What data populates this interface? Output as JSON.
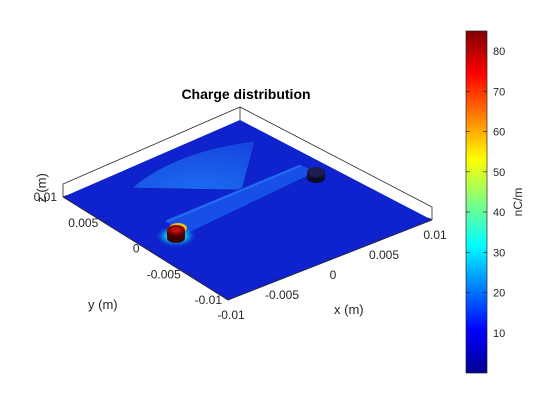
{
  "chart_data": {
    "type": "surface3d",
    "title": "Charge distribution",
    "xlabel": "x (m)",
    "ylabel": "y (m)",
    "zlabel": "z (m)",
    "xlim": [
      -0.01,
      0.01
    ],
    "ylim": [
      -0.01,
      0.01
    ],
    "x_ticks": [
      "-0.01",
      "-0.005",
      "0",
      "0.005",
      "0.01"
    ],
    "y_ticks": [
      "-0.01",
      "-0.005",
      "0",
      "0.005",
      "0.01"
    ],
    "colorbar": {
      "label": "nC/m",
      "range": [
        0,
        85
      ],
      "ticks": [
        10,
        20,
        30,
        40,
        50,
        60,
        70,
        80
      ],
      "tick_labels": [
        "10",
        "20",
        "30",
        "40",
        "50",
        "60",
        "70",
        "80"
      ],
      "colormap": "jet"
    },
    "features": [
      {
        "name": "ground plane",
        "level": 3
      },
      {
        "name": "radial stub",
        "level": 12
      },
      {
        "name": "microstrip line",
        "level": 14
      },
      {
        "name": "feed via",
        "level": 85
      },
      {
        "name": "shorting via",
        "level": 2
      }
    ]
  },
  "colors": {
    "plane": "#0d1fc8",
    "background": "#ffffff",
    "axis": "#262626",
    "feed_peak": "#8b0000"
  }
}
